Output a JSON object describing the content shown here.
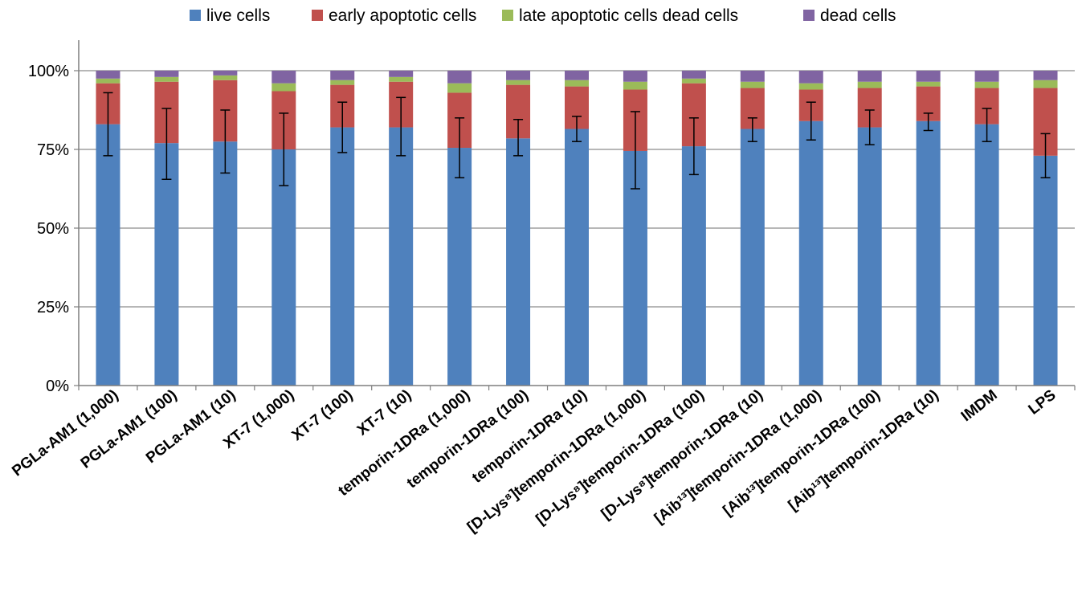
{
  "chart_data": {
    "type": "bar",
    "stacked": true,
    "percent": true,
    "title": "",
    "xlabel": "",
    "ylabel": "",
    "ylim": [
      0,
      100
    ],
    "yticks": [
      "0%",
      "25%",
      "50%",
      "75%",
      "100%"
    ],
    "grid": true,
    "legend": "top",
    "categories": [
      "PGLa-AM1 (1,000)",
      "PGLa-AM1 (100)",
      "PGLa-AM1 (10)",
      "XT-7 (1,000)",
      "XT-7 (100)",
      "XT-7 (10)",
      "temporin-1DRa (1,000)",
      "temporin-1DRa (100)",
      "temporin-1DRa (10)",
      "[D-Lys⁸]temporin-1DRa (1,000)",
      "[D-Lys⁸]temporin-1DRa (100)",
      "[D-Lys⁸]temporin-1DRa (10)",
      "[Aib¹³]temporin-1DRa (1,000)",
      "[Aib¹³]temporin-1DRa (100)",
      "[Aib¹³]temporin-1DRa (10)",
      "IMDM",
      "LPS"
    ],
    "series": [
      {
        "name": "live cells",
        "color": "#4f81bd",
        "values": [
          83,
          77,
          77.5,
          75,
          82,
          82,
          75.5,
          78.5,
          81.5,
          74.5,
          76,
          81.5,
          84,
          82,
          84,
          83,
          73
        ]
      },
      {
        "name": "early apoptotic cells",
        "color": "#c0504d",
        "values": [
          13,
          19.5,
          19.5,
          18.5,
          13.5,
          14.5,
          17.5,
          17,
          13.5,
          19.5,
          20,
          13,
          10,
          12.5,
          11,
          11.5,
          21.5
        ]
      },
      {
        "name": "late apoptotic cells dead cells",
        "color": "#9bbb59",
        "values": [
          1.5,
          1.5,
          1.5,
          2.5,
          1.5,
          1.5,
          3,
          1.5,
          2,
          2.5,
          1.5,
          2,
          2,
          2,
          1.5,
          2,
          2.5
        ]
      },
      {
        "name": "dead cells",
        "color": "#8064a2",
        "values": [
          2.5,
          2,
          1.5,
          4,
          3,
          2,
          4,
          3,
          3,
          3.5,
          2.5,
          3.5,
          4,
          3.5,
          3.5,
          3.5,
          3
        ]
      }
    ],
    "error_bars": {
      "series": "live cells",
      "upper": [
        93,
        88,
        87.5,
        86.5,
        90,
        91.5,
        85,
        84.5,
        85.5,
        87,
        85,
        85,
        90,
        87.5,
        86.5,
        88,
        80
      ],
      "lower": [
        73,
        65.5,
        67.5,
        63.5,
        74,
        73,
        66,
        73,
        77.5,
        62.5,
        67,
        77.5,
        78,
        76.5,
        81,
        77.5,
        66
      ]
    }
  }
}
